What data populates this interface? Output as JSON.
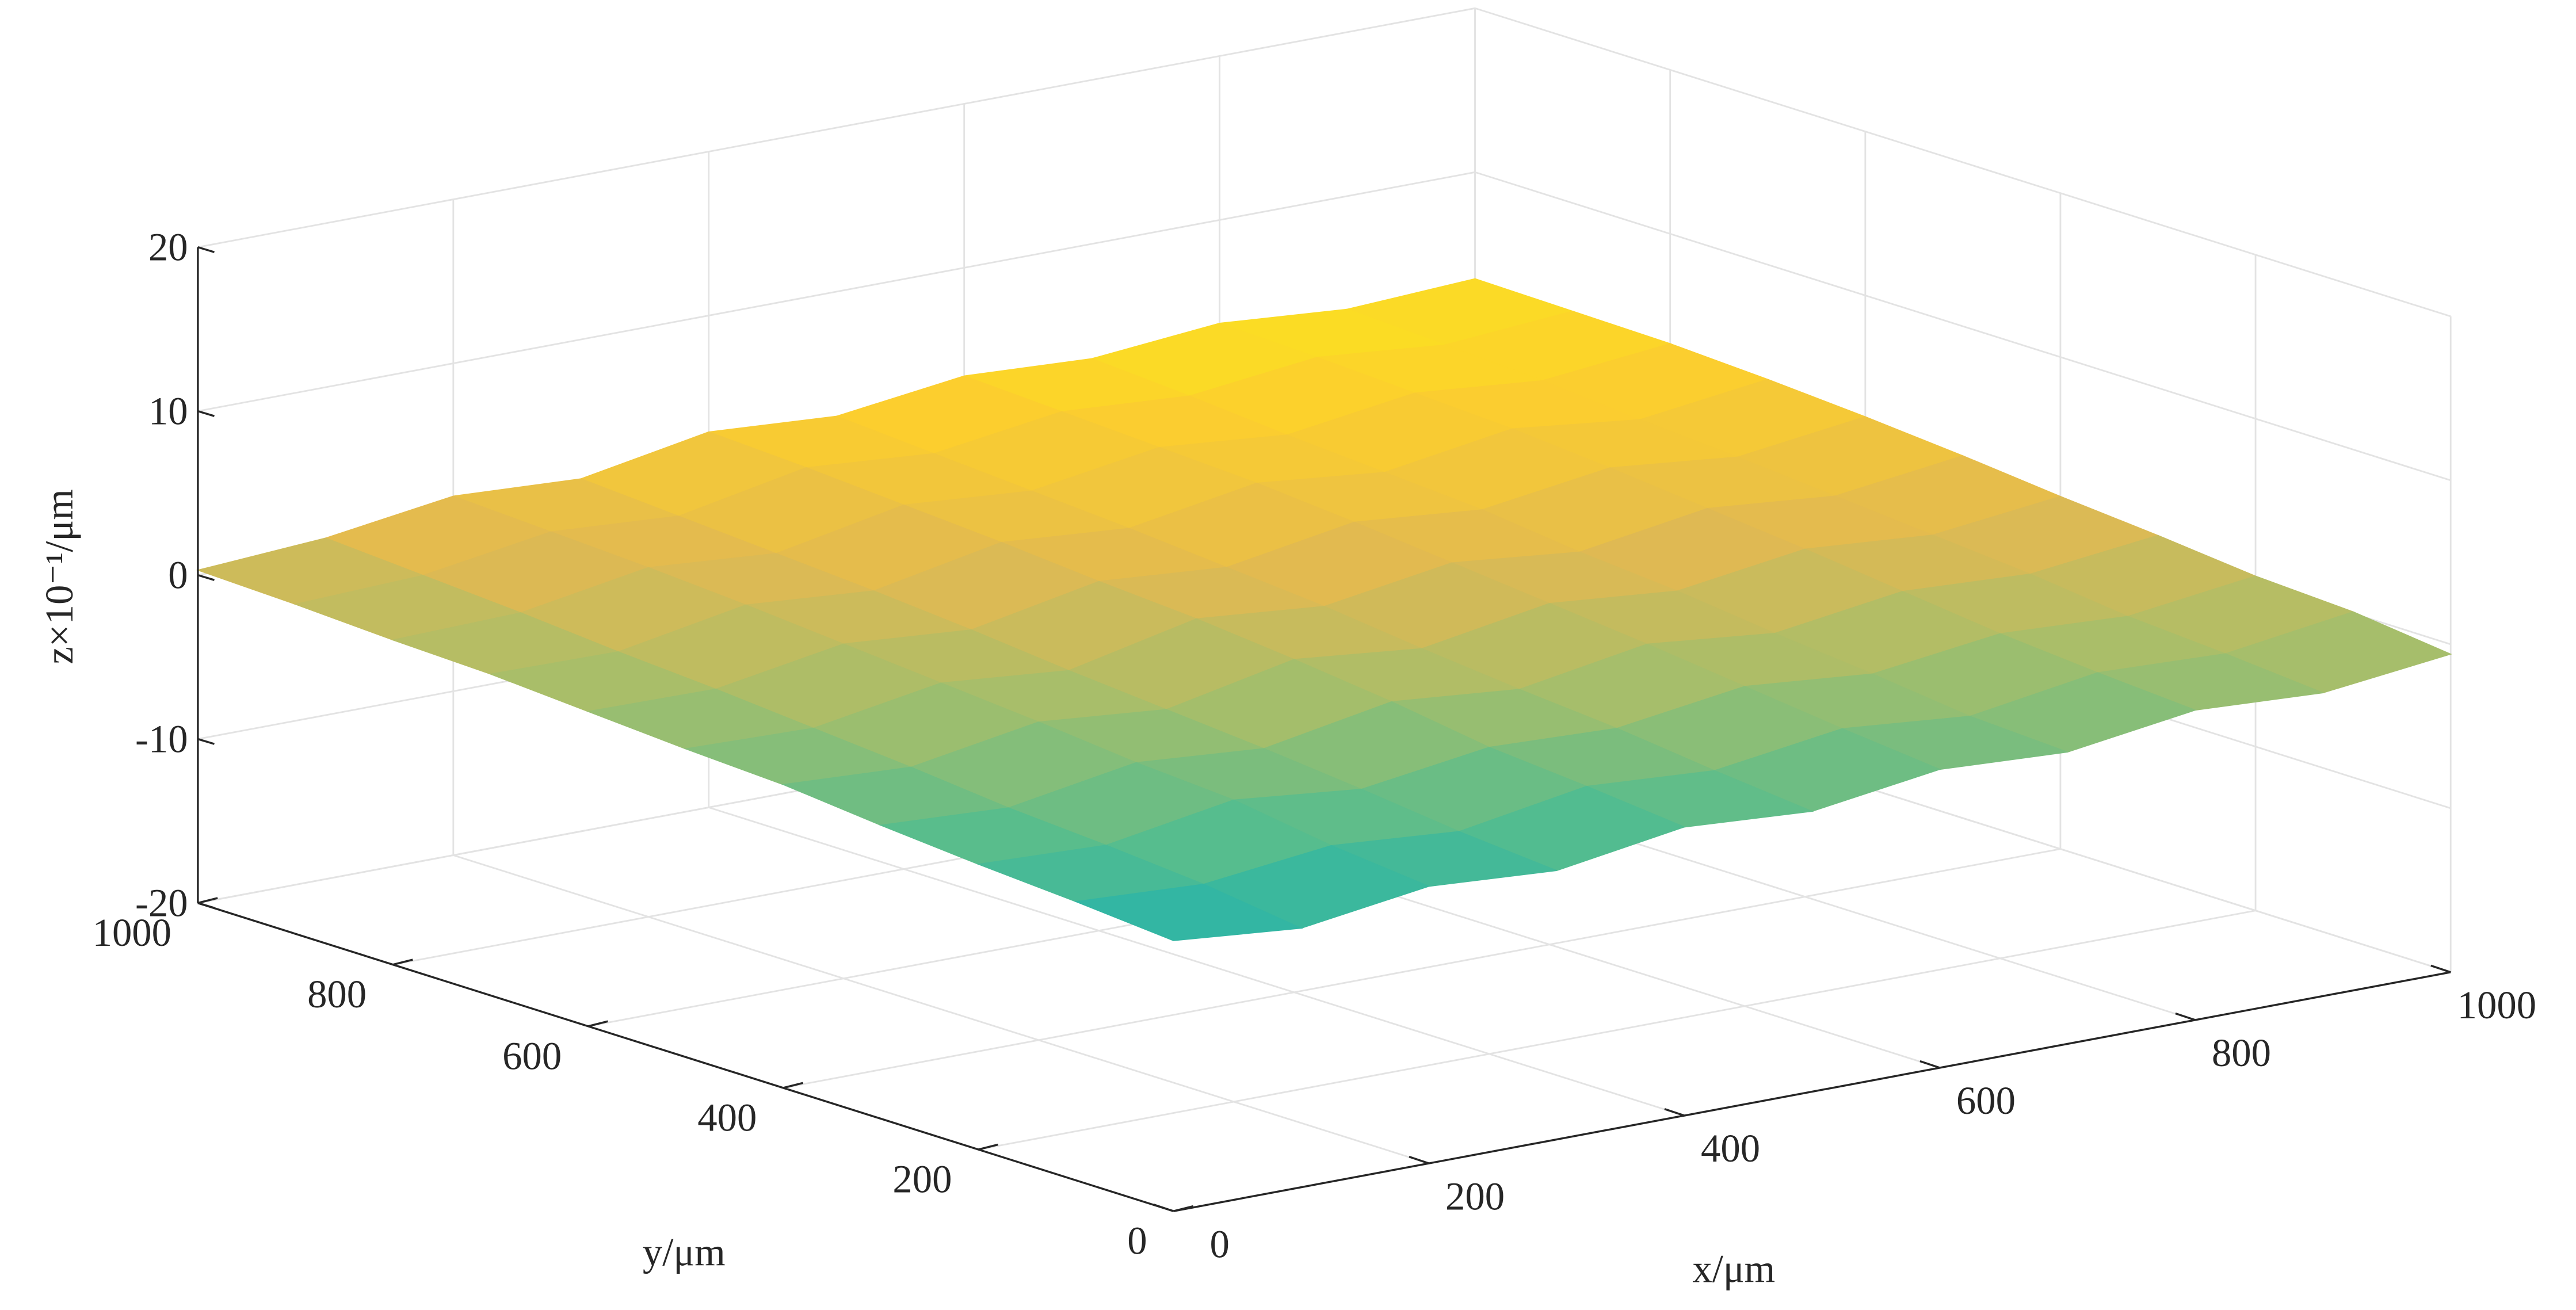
{
  "chart_data": {
    "type": "surface",
    "xlabel": "x/μm",
    "ylabel": "y/μm",
    "zlabel": "z×10⁻¹/μm",
    "x": [
      0,
      100,
      200,
      300,
      400,
      500,
      600,
      700,
      800,
      900,
      1000
    ],
    "y": [
      0,
      100,
      200,
      300,
      400,
      500,
      600,
      700,
      800,
      900,
      1000
    ],
    "z": [
      [
        -3.5,
        -4.2,
        -3.1,
        -3.6,
        -2.4,
        -2.9,
        -1.8,
        -2.2,
        -1.1,
        -1.5,
        -0.6
      ],
      [
        -3.0,
        -3.4,
        -2.5,
        -3.1,
        -1.8,
        -2.3,
        -1.2,
        -1.9,
        -0.7,
        -1.0,
        0.1
      ],
      [
        -2.6,
        -2.9,
        -1.6,
        -2.4,
        -1.3,
        -1.6,
        -0.5,
        -1.2,
        -0.2,
        -0.6,
        0.4
      ],
      [
        -2.1,
        -2.5,
        -1.2,
        -1.8,
        -0.4,
        -1.1,
        0.2,
        -0.6,
        0.5,
        0.1,
        1.0
      ],
      [
        -1.5,
        -1.9,
        -0.6,
        -1.3,
        0.3,
        -0.5,
        0.8,
        0.1,
        1.2,
        0.6,
        1.5
      ],
      [
        -1.2,
        -1.4,
        -0.1,
        -0.8,
        0.9,
        0.2,
        1.4,
        0.6,
        1.8,
        1.1,
        2.1
      ],
      [
        -0.8,
        -0.9,
        0.4,
        -0.2,
        1.3,
        0.7,
        2.0,
        1.3,
        2.4,
        1.6,
        2.6
      ],
      [
        -0.4,
        -0.5,
        0.9,
        0.3,
        1.8,
        1.2,
        2.5,
        1.7,
        2.9,
        2.0,
        3.0
      ],
      [
        -0.2,
        0.0,
        1.3,
        0.7,
        2.2,
        1.6,
        2.8,
        2.1,
        3.2,
        2.5,
        3.3
      ],
      [
        0.1,
        0.4,
        1.6,
        1.1,
        2.6,
        2.0,
        3.1,
        2.6,
        3.5,
        2.8,
        3.4
      ],
      [
        0.3,
        0.8,
        1.9,
        1.5,
        2.9,
        2.4,
        3.4,
        3.0,
        3.7,
        3.1,
        3.5
      ]
    ],
    "xlim": [
      0,
      1000
    ],
    "ylim": [
      0,
      1000
    ],
    "zlim": [
      -20,
      20
    ],
    "xticks": [
      0,
      200,
      400,
      600,
      800,
      1000
    ],
    "yticks": [
      0,
      200,
      400,
      600,
      800,
      1000
    ],
    "zticks": [
      -20,
      -10,
      0,
      10,
      20
    ],
    "grid": true,
    "colormap": "parula"
  }
}
